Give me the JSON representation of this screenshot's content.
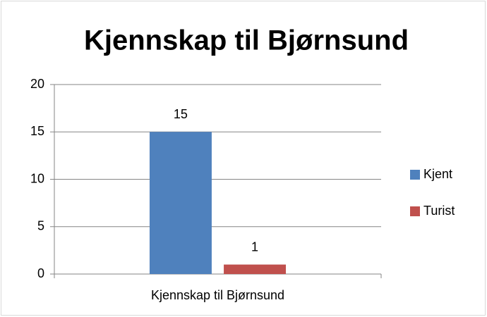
{
  "chart_data": {
    "type": "bar",
    "title": "Kjennskap til Bjørnsund",
    "categories": [
      "Kjennskap til Bjørnsund"
    ],
    "series": [
      {
        "name": "Kjent",
        "color": "#4f81bd",
        "values": [
          15
        ]
      },
      {
        "name": "Turist",
        "color": "#c0504d",
        "values": [
          1
        ]
      }
    ],
    "ylim": [
      0,
      20
    ],
    "yticks": [
      0,
      5,
      10,
      15,
      20
    ],
    "grid": true,
    "legend": "right",
    "data_labels": true
  }
}
